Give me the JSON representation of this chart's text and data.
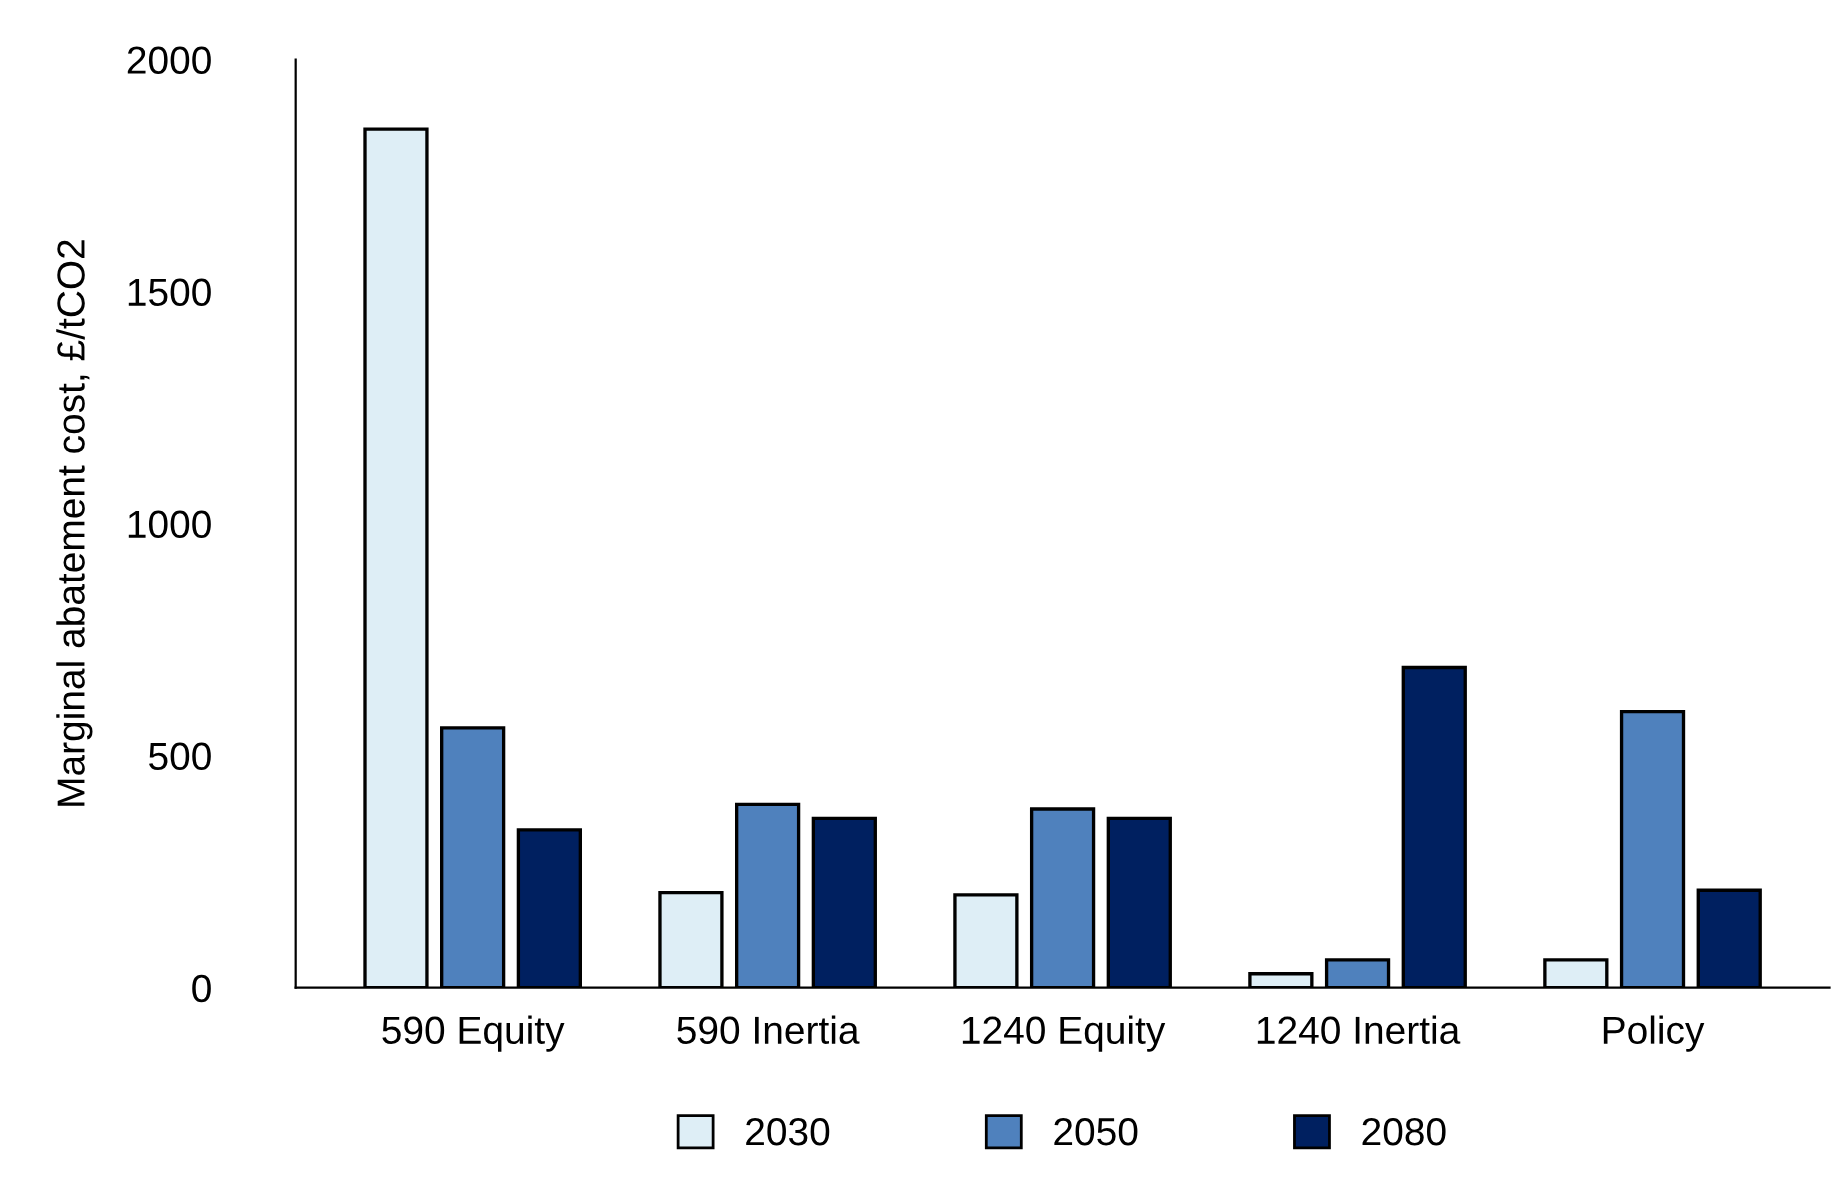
{
  "chart_data": {
    "type": "bar",
    "ylabel": "Marginal abatement cost, £/tCO2",
    "categories": [
      "590 Equity",
      "590 Inertia",
      "1240 Equity",
      "1240 Inertia",
      "Policy"
    ],
    "series": [
      {
        "name": "2030",
        "color": "#deeef6",
        "values": [
          1850,
          205,
          200,
          30,
          60
        ]
      },
      {
        "name": "2050",
        "color": "#4f81bd",
        "values": [
          560,
          395,
          385,
          60,
          595
        ]
      },
      {
        "name": "2080",
        "color": "#002060",
        "values": [
          340,
          365,
          365,
          690,
          210
        ]
      }
    ],
    "ylim": [
      0,
      2000
    ],
    "yticks": [
      0,
      500,
      1000,
      1500,
      2000
    ],
    "grid": false,
    "legend": "bottom"
  }
}
